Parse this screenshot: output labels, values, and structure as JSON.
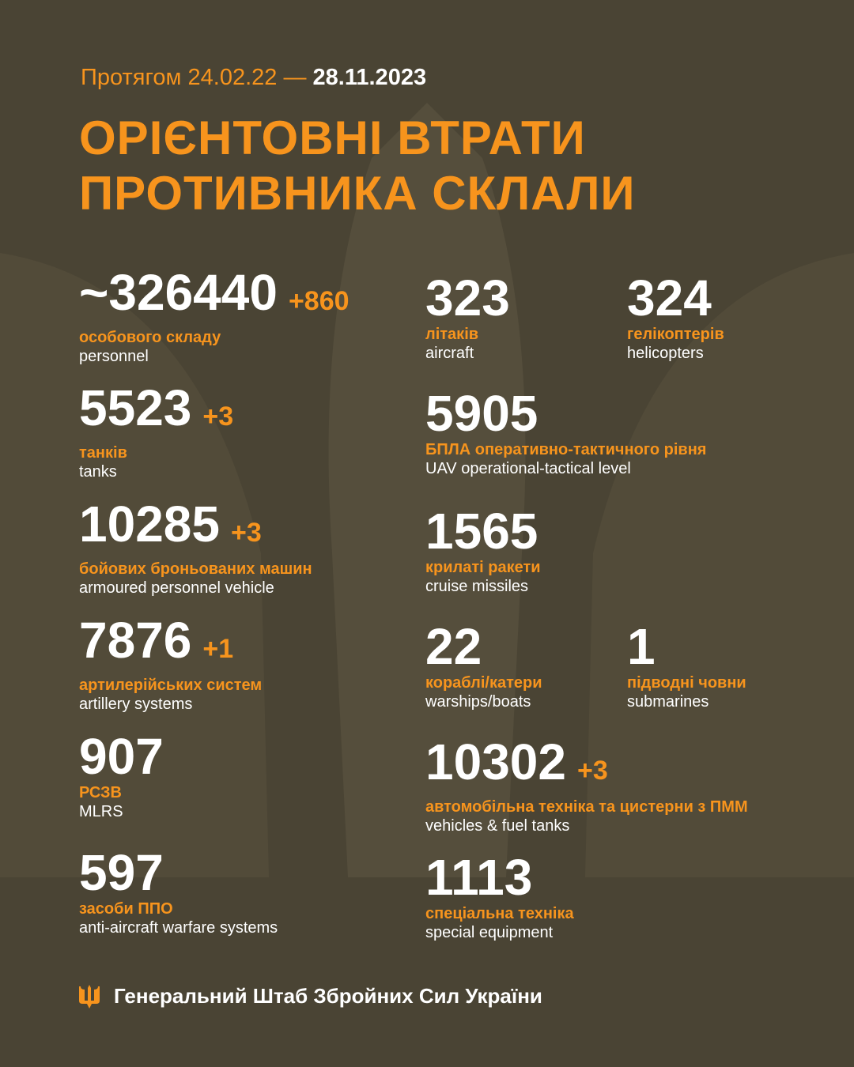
{
  "header": {
    "period_prefix": "Протягом 24.02.22 —",
    "period_end": "28.11.2023",
    "title_line1": "ОРІЄНТОВНІ ВТРАТИ",
    "title_line2": "ПРОТИВНИКА СКЛАЛИ"
  },
  "items": [
    {
      "value": "~326440",
      "delta": "+860",
      "ua": "особового складу",
      "en": "personnel"
    },
    {
      "value": "5523",
      "delta": "+3",
      "ua": "танків",
      "en": "tanks"
    },
    {
      "value": "10285",
      "delta": "+3",
      "ua": "бойових броньованих машин",
      "en": "armoured personnel vehicle"
    },
    {
      "value": "7876",
      "delta": "+1",
      "ua": "артилерійських систем",
      "en": "artillery systems"
    },
    {
      "value": "907",
      "ua": "РСЗВ",
      "en": "MLRS"
    },
    {
      "value": "597",
      "ua": "засоби ППО",
      "en": "anti-aircraft warfare systems"
    },
    {
      "value": "323",
      "ua": "літаків",
      "en": "aircraft"
    },
    {
      "value": "324",
      "ua": "гелікоптерів",
      "en": "helicopters"
    },
    {
      "value": "5905",
      "ua": "БПЛА оперативно-тактичного рівня",
      "en": "UAV operational-tactical level"
    },
    {
      "value": "1565",
      "ua": "крилаті ракети",
      "en": "cruise missiles"
    },
    {
      "value": "22",
      "ua": "кораблі/катери",
      "en": "warships/boats"
    },
    {
      "value": "1",
      "ua": "підводні човни",
      "en": "submarines"
    },
    {
      "value": "10302",
      "delta": "+3",
      "ua": "автомобільна техніка та цистерни з ПММ",
      "en": "vehicles & fuel tanks"
    },
    {
      "value": "1113",
      "ua": "спеціальна техніка",
      "en": "special equipment"
    }
  ],
  "footer": {
    "org": "Генеральний Штаб Збройних Сил України",
    "icon": "trident-icon"
  },
  "colors": {
    "background": "#4a4434",
    "accent": "#f7941d",
    "text": "#ffffff"
  }
}
